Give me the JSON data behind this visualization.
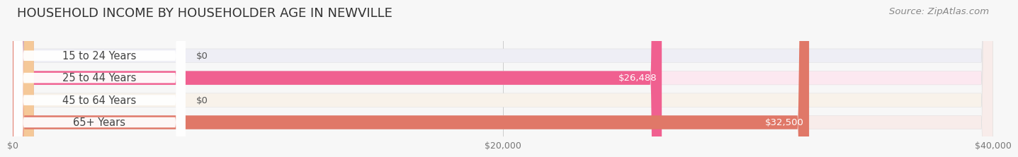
{
  "title": "HOUSEHOLD INCOME BY HOUSEHOLDER AGE IN NEWVILLE",
  "source": "Source: ZipAtlas.com",
  "categories": [
    "15 to 24 Years",
    "25 to 44 Years",
    "45 to 64 Years",
    "65+ Years"
  ],
  "values": [
    0,
    26488,
    0,
    32500
  ],
  "bar_colors": [
    "#aaaadd",
    "#f06090",
    "#f5c898",
    "#e07868"
  ],
  "bar_bg_colors": [
    "#eeeef5",
    "#fce8f0",
    "#f8f2ea",
    "#f8ecea"
  ],
  "value_labels": [
    "$0",
    "$26,488",
    "$0",
    "$32,500"
  ],
  "xlim": [
    0,
    40000
  ],
  "xticks": [
    0,
    20000,
    40000
  ],
  "xtick_labels": [
    "$0",
    "$20,000",
    "$40,000"
  ],
  "background_color": "#f7f7f7",
  "bar_height": 0.62,
  "title_fontsize": 13,
  "source_fontsize": 9.5,
  "label_fontsize": 10.5,
  "value_fontsize": 9.5
}
